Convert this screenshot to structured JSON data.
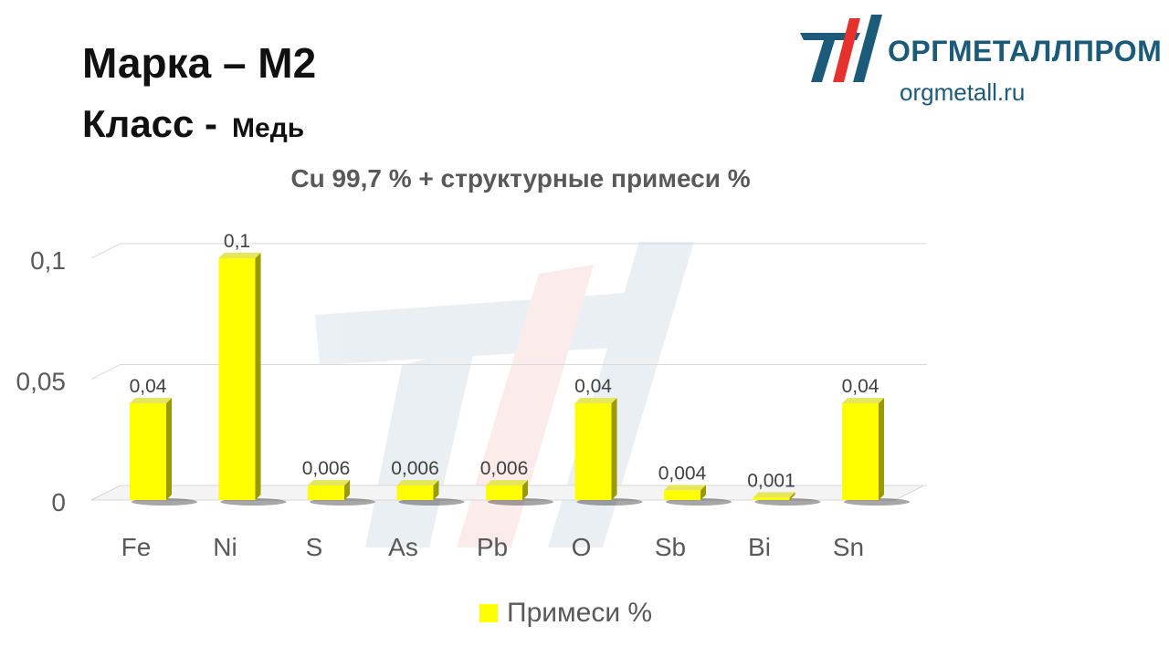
{
  "header": {
    "grade_label": "Марка – М2",
    "class_label": "Класс -",
    "class_value": "Медь"
  },
  "brand": {
    "name": "ОРГМЕТАЛЛПРОМ",
    "site": "orgmetall.ru",
    "colors": {
      "primary": "#1b5a78",
      "accent": "#e5322d"
    }
  },
  "chart_data": {
    "type": "bar",
    "title": "Cu 99,7 % + структурные примеси %",
    "categories": [
      "Fe",
      "Ni",
      "S",
      "As",
      "Pb",
      "O",
      "Sb",
      "Bi",
      "Sn"
    ],
    "series": [
      {
        "name": "Примеси %",
        "values": [
          0.04,
          0.1,
          0.006,
          0.006,
          0.006,
          0.04,
          0.004,
          0.001,
          0.04
        ],
        "labels": [
          "0,04",
          "0,1",
          "0,006",
          "0,006",
          "0,006",
          "0,04",
          "0,004",
          "0,001",
          "0,04"
        ],
        "color": "#ffff00"
      }
    ],
    "y_ticks": [
      {
        "value": 0,
        "label": "0"
      },
      {
        "value": 0.05,
        "label": "0,05"
      },
      {
        "value": 0.1,
        "label": "0,1"
      }
    ],
    "ylim": [
      0,
      0.1
    ],
    "grid": true,
    "legend_position": "bottom",
    "style": "3d"
  }
}
